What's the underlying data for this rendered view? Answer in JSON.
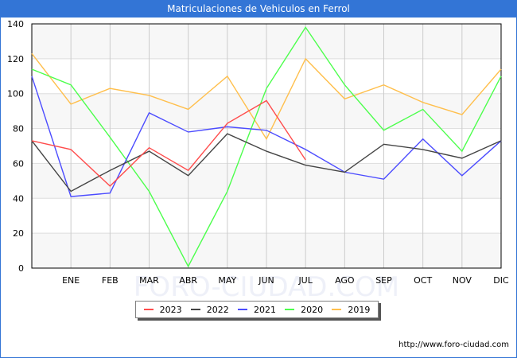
{
  "title": "Matriculaciones de Vehiculos en Ferrol",
  "footer": "http://www.foro-ciudad.com",
  "watermark": "FORO-CIUDAD.COM",
  "colors": {
    "title_bar": "#3375d6",
    "2023": "#ff4c4c",
    "2022": "#444444",
    "2021": "#4c4cff",
    "2020": "#4cff4c",
    "2019": "#ffbf4c"
  },
  "chart_data": {
    "type": "line",
    "title": "Matriculaciones de Vehiculos en Ferrol",
    "xlabel": "",
    "ylabel": "",
    "ylim": [
      0,
      140
    ],
    "yticks": [
      0,
      20,
      40,
      60,
      80,
      100,
      120,
      140
    ],
    "grid": true,
    "legend_position": "bottom",
    "categories": [
      "",
      "ENE",
      "FEB",
      "MAR",
      "ABR",
      "MAY",
      "JUN",
      "JUL",
      "AGO",
      "SEP",
      "OCT",
      "NOV",
      "DIC"
    ],
    "series": [
      {
        "name": "2023",
        "color": "#ff4c4c",
        "values": [
          73,
          68,
          47,
          69,
          56,
          83,
          96,
          62,
          null,
          null,
          null,
          null,
          null
        ]
      },
      {
        "name": "2022",
        "color": "#444444",
        "values": [
          73,
          44,
          56,
          67,
          53,
          77,
          67,
          59,
          55,
          71,
          68,
          63,
          73
        ]
      },
      {
        "name": "2021",
        "color": "#4c4cff",
        "values": [
          110,
          41,
          43,
          89,
          78,
          81,
          79,
          68,
          55,
          51,
          74,
          53,
          73
        ]
      },
      {
        "name": "2020",
        "color": "#4cff4c",
        "values": [
          114,
          105,
          75,
          44,
          1,
          44,
          103,
          138,
          105,
          79,
          91,
          67,
          110
        ]
      },
      {
        "name": "2019",
        "color": "#ffbf4c",
        "values": [
          123,
          94,
          103,
          99,
          91,
          110,
          74,
          120,
          97,
          105,
          95,
          88,
          114
        ]
      }
    ]
  },
  "legend": [
    {
      "label": "2023",
      "color": "#ff4c4c"
    },
    {
      "label": "2022",
      "color": "#444444"
    },
    {
      "label": "2021",
      "color": "#4c4cff"
    },
    {
      "label": "2020",
      "color": "#4cff4c"
    },
    {
      "label": "2019",
      "color": "#ffbf4c"
    }
  ]
}
